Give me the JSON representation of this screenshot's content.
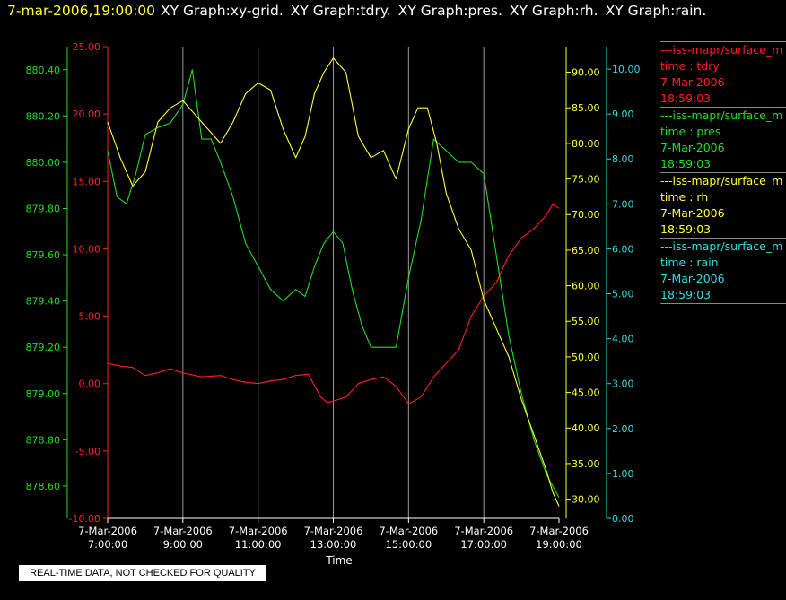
{
  "header": {
    "timestamp": "7-mar-2006,19:00:00",
    "graphs": [
      "XY Graph:xy-grid.",
      "XY Graph:tdry.",
      "XY Graph:pres.",
      "XY Graph:rh.",
      "XY Graph:rain."
    ]
  },
  "notice": "REAL-TIME DATA, NOT CHECKED FOR QUALITY",
  "legend": [
    {
      "name": "---iss-mapr/surface_m",
      "line2": "time : tdry",
      "line3": "7-Mar-2006",
      "line4": "18:59:03",
      "color": "#ff2020"
    },
    {
      "name": "---iss-mapr/surface_m",
      "line2": "time : pres",
      "line3": "7-Mar-2006",
      "line4": "18:59:03",
      "color": "#22dd22"
    },
    {
      "name": "---iss-mapr/surface_m",
      "line2": "time : rh",
      "line3": "7-Mar-2006",
      "line4": "18:59:03",
      "color": "#ffff33"
    },
    {
      "name": "---iss-mapr/surface_m",
      "line2": "time : rain",
      "line3": "7-Mar-2006",
      "line4": "18:59:03",
      "color": "#33dddd"
    }
  ],
  "chart_data": {
    "type": "line",
    "xlabel": "Time",
    "grid": "vertical lines at each x tick",
    "legend_position": "right",
    "x_ticks": [
      {
        "date": "7-Mar-2006",
        "time": "7:00:00"
      },
      {
        "date": "7-Mar-2006",
        "time": "9:00:00"
      },
      {
        "date": "7-Mar-2006",
        "time": "11:00:00"
      },
      {
        "date": "7-Mar-2006",
        "time": "13:00:00"
      },
      {
        "date": "7-Mar-2006",
        "time": "15:00:00"
      },
      {
        "date": "7-Mar-2006",
        "time": "17:00:00"
      },
      {
        "date": "7-Mar-2006",
        "time": "19:00:00"
      }
    ],
    "xlim": [
      "7:00",
      "19:00"
    ],
    "axes": [
      {
        "id": "pres",
        "color": "#22dd22",
        "ylim": [
          878.46,
          880.5
        ],
        "ticks": [
          "878.60",
          "878.80",
          "879.00",
          "879.20",
          "879.40",
          "879.60",
          "879.80",
          "880.00",
          "880.20",
          "880.40"
        ]
      },
      {
        "id": "tdry",
        "color": "#ff2020",
        "ylim": [
          -10,
          25
        ],
        "ticks": [
          "-10.00",
          "-5.00",
          "0.00",
          "5.00",
          "10.00",
          "15.00",
          "20.00",
          "25.00"
        ]
      },
      {
        "id": "rh",
        "color": "#ffff33",
        "ylim": [
          27.3,
          93.6
        ],
        "ticks": [
          "30.00",
          "35.00",
          "40.00",
          "45.00",
          "50.00",
          "55.00",
          "60.00",
          "65.00",
          "70.00",
          "75.00",
          "80.00",
          "85.00",
          "90.00"
        ]
      },
      {
        "id": "rain",
        "color": "#33dddd",
        "ylim": [
          0,
          10.5
        ],
        "ticks": [
          "0.00",
          "1.00",
          "2.00",
          "3.00",
          "4.00",
          "5.00",
          "6.00",
          "7.00",
          "8.00",
          "9.00",
          "10.00"
        ]
      }
    ],
    "series": [
      {
        "axis": "tdry",
        "color": "#ff2020",
        "x": [
          "7:00",
          "7:20",
          "7:40",
          "8:00",
          "8:20",
          "8:40",
          "9:00",
          "9:30",
          "10:00",
          "10:20",
          "10:40",
          "11:00",
          "11:20",
          "11:40",
          "12:00",
          "12:20",
          "12:40",
          "12:50",
          "13:00",
          "13:20",
          "13:40",
          "14:00",
          "14:20",
          "14:40",
          "15:00",
          "15:20",
          "15:40",
          "16:00",
          "16:20",
          "16:40",
          "17:00",
          "17:20",
          "17:40",
          "18:00",
          "18:20",
          "18:40",
          "18:50",
          "19:00"
        ],
        "y": [
          1.5,
          1.3,
          1.2,
          0.6,
          0.8,
          1.1,
          0.8,
          0.5,
          0.6,
          0.3,
          0.1,
          0.0,
          0.2,
          0.3,
          0.6,
          0.7,
          -1.0,
          -1.4,
          -1.3,
          -1.0,
          0.0,
          0.3,
          0.5,
          -0.2,
          -1.5,
          -1.0,
          0.5,
          1.5,
          2.5,
          5.0,
          6.5,
          7.5,
          9.5,
          10.8,
          11.5,
          12.5,
          13.3,
          13.0
        ]
      },
      {
        "axis": "pres",
        "color": "#22dd22",
        "x": [
          "7:00",
          "7:15",
          "7:30",
          "7:45",
          "8:00",
          "8:20",
          "8:40",
          "9:00",
          "9:15",
          "9:30",
          "9:45",
          "10:00",
          "10:20",
          "10:40",
          "11:00",
          "11:20",
          "11:40",
          "12:00",
          "12:15",
          "12:30",
          "12:45",
          "13:00",
          "13:15",
          "13:30",
          "13:45",
          "14:00",
          "14:20",
          "14:40",
          "15:00",
          "15:20",
          "15:40",
          "16:00",
          "16:20",
          "16:40",
          "17:00",
          "17:20",
          "17:40",
          "18:00",
          "18:20",
          "18:40",
          "19:00"
        ],
        "y": [
          880.05,
          879.85,
          879.82,
          879.95,
          880.12,
          880.15,
          880.17,
          880.25,
          880.4,
          880.1,
          880.1,
          880.0,
          879.85,
          879.65,
          879.55,
          879.45,
          879.4,
          879.45,
          879.42,
          879.55,
          879.65,
          879.7,
          879.65,
          879.45,
          879.3,
          879.2,
          879.2,
          879.2,
          879.5,
          879.75,
          880.1,
          880.05,
          880.0,
          880.0,
          879.95,
          879.6,
          879.25,
          879.0,
          878.8,
          878.65,
          878.55
        ]
      },
      {
        "axis": "rh",
        "color": "#ffff33",
        "x": [
          "7:00",
          "7:10",
          "7:20",
          "7:40",
          "8:00",
          "8:20",
          "8:40",
          "9:00",
          "9:20",
          "9:40",
          "10:00",
          "10:20",
          "10:40",
          "11:00",
          "11:20",
          "11:40",
          "12:00",
          "12:15",
          "12:30",
          "12:45",
          "13:00",
          "13:20",
          "13:40",
          "14:00",
          "14:20",
          "14:40",
          "15:00",
          "15:15",
          "15:30",
          "15:45",
          "16:00",
          "16:20",
          "16:40",
          "17:00",
          "17:20",
          "17:40",
          "18:00",
          "18:20",
          "18:40",
          "18:50",
          "19:00"
        ],
        "y": [
          83.0,
          80.5,
          78.0,
          74.0,
          76.0,
          83.0,
          85.0,
          86.0,
          84.0,
          82.0,
          80.0,
          83.0,
          87.0,
          88.5,
          87.5,
          82.0,
          78.0,
          81.0,
          87.0,
          90.0,
          92.0,
          90.0,
          81.0,
          78.0,
          79.0,
          75.0,
          82.0,
          85.0,
          85.0,
          80.0,
          73.0,
          68.0,
          65.0,
          58.0,
          54.0,
          50.0,
          44.0,
          39.0,
          34.0,
          31.0,
          29.0
        ]
      },
      {
        "axis": "rain",
        "color": "#33dddd",
        "x": [
          "7:00",
          "19:00"
        ],
        "y": [
          0.0,
          0.0
        ]
      }
    ]
  }
}
